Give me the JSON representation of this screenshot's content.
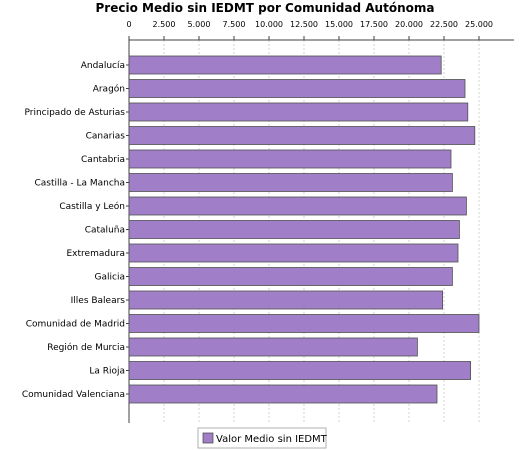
{
  "chart_data": {
    "type": "bar",
    "orientation": "horizontal",
    "title": "Precio Medio sin IEDMT por Comunidad Autónoma",
    "xlabel": "",
    "ylabel": "",
    "xlim": [
      0,
      27500
    ],
    "x_ticks": [
      "0",
      "2.500",
      "5.000",
      "7.500",
      "10.000",
      "12.500",
      "15.000",
      "17.500",
      "20.000",
      "22.500",
      "25.000"
    ],
    "x_tick_values": [
      0,
      2500,
      5000,
      7500,
      10000,
      12500,
      15000,
      17500,
      20000,
      22500,
      25000
    ],
    "axis_position": "top",
    "grid": true,
    "legend_position": "bottom",
    "categories": [
      "Andalucía",
      "Aragón",
      "Principado de Asturias",
      "Canarias",
      "Cantabria",
      "Castilla - La Mancha",
      "Castilla y León",
      "Cataluña",
      "Extremadura",
      "Galicia",
      "Illes Balears",
      "Comunidad de Madrid",
      "Región de Murcia",
      "La Rioja",
      "Comunidad Valenciana"
    ],
    "series": [
      {
        "name": "Valor Medio sin IEDMT",
        "color": "#a07fc8",
        "values": [
          22300,
          24000,
          24200,
          24700,
          23000,
          23100,
          24100,
          23600,
          23500,
          23100,
          22400,
          25000,
          20600,
          24400,
          22000
        ]
      }
    ]
  }
}
